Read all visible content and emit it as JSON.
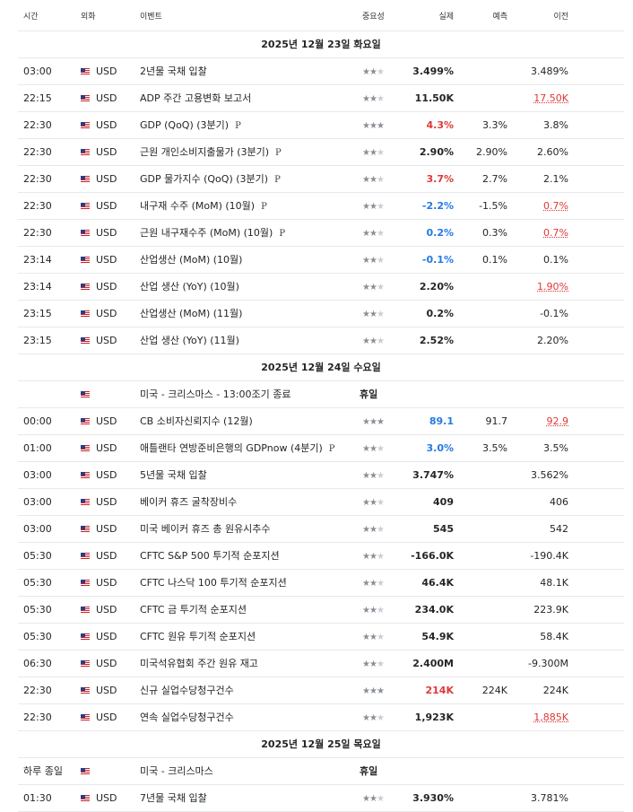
{
  "headers": {
    "time": "시간",
    "currency": "외화",
    "event": "이벤트",
    "importance": "중요성",
    "actual": "실제",
    "forecast": "예측",
    "previous": "이전"
  },
  "rows": [
    {
      "type": "day",
      "label": "2025년 12월 23일 화요일"
    },
    {
      "type": "event",
      "time": "03:00",
      "currency": "USD",
      "event": "2년물 국채 입찰",
      "prelim": "",
      "stars": 2,
      "actual": "3.499%",
      "actual_color": "",
      "forecast": "",
      "previous": "3.489%",
      "previous_revised": false
    },
    {
      "type": "event",
      "time": "22:15",
      "currency": "USD",
      "event": "ADP 주간 고용변화 보고서",
      "prelim": "",
      "stars": 2,
      "actual": "11.50K",
      "actual_color": "",
      "forecast": "",
      "previous": "17.50K",
      "previous_revised": true
    },
    {
      "type": "event",
      "time": "22:30",
      "currency": "USD",
      "event": "GDP (QoQ) (3분기)",
      "prelim": "P",
      "stars": 3,
      "actual": "4.3%",
      "actual_color": "red",
      "forecast": "3.3%",
      "previous": "3.8%",
      "previous_revised": false
    },
    {
      "type": "event",
      "time": "22:30",
      "currency": "USD",
      "event": "근원 개인소비지출물가  (3분기)",
      "prelim": "P",
      "stars": 2,
      "actual": "2.90%",
      "actual_color": "",
      "forecast": "2.90%",
      "previous": "2.60%",
      "previous_revised": false
    },
    {
      "type": "event",
      "time": "22:30",
      "currency": "USD",
      "event": "GDP 물가지수 (QoQ) (3분기)",
      "prelim": "P",
      "stars": 2,
      "actual": "3.7%",
      "actual_color": "red",
      "forecast": "2.7%",
      "previous": "2.1%",
      "previous_revised": false
    },
    {
      "type": "event",
      "time": "22:30",
      "currency": "USD",
      "event": "내구재 수주 (MoM) (10월)",
      "prelim": "P",
      "stars": 2,
      "actual": "-2.2%",
      "actual_color": "blue",
      "forecast": "-1.5%",
      "previous": "0.7%",
      "previous_revised": true
    },
    {
      "type": "event",
      "time": "22:30",
      "currency": "USD",
      "event": "근원 내구재수주 (MoM) (10월)",
      "prelim": "P",
      "stars": 2,
      "actual": "0.2%",
      "actual_color": "blue",
      "forecast": "0.3%",
      "previous": "0.7%",
      "previous_revised": true
    },
    {
      "type": "event",
      "time": "23:14",
      "currency": "USD",
      "event": "산업생산 (MoM) (10월)",
      "prelim": "",
      "stars": 2,
      "actual": "-0.1%",
      "actual_color": "blue",
      "forecast": "0.1%",
      "previous": "0.1%",
      "previous_revised": false
    },
    {
      "type": "event",
      "time": "23:14",
      "currency": "USD",
      "event": "산업 생산 (YoY) (10월)",
      "prelim": "",
      "stars": 2,
      "actual": "2.20%",
      "actual_color": "",
      "forecast": "",
      "previous": "1.90%",
      "previous_revised": true
    },
    {
      "type": "event",
      "time": "23:15",
      "currency": "USD",
      "event": "산업생산 (MoM) (11월)",
      "prelim": "",
      "stars": 2,
      "actual": "0.2%",
      "actual_color": "",
      "forecast": "",
      "previous": "-0.1%",
      "previous_revised": false
    },
    {
      "type": "event",
      "time": "23:15",
      "currency": "USD",
      "event": "산업 생산 (YoY) (11월)",
      "prelim": "",
      "stars": 2,
      "actual": "2.52%",
      "actual_color": "",
      "forecast": "",
      "previous": "2.20%",
      "previous_revised": false
    },
    {
      "type": "day",
      "label": "2025년 12월 24일 수요일"
    },
    {
      "type": "holiday",
      "time": "",
      "currency": "",
      "event": "미국 - 크리스마스  - 13:00조기 종료",
      "label": "휴일"
    },
    {
      "type": "event",
      "time": "00:00",
      "currency": "USD",
      "event": "CB 소비자신뢰지수  (12월)",
      "prelim": "",
      "stars": 3,
      "actual": "89.1",
      "actual_color": "blue",
      "forecast": "91.7",
      "previous": "92.9",
      "previous_revised": true
    },
    {
      "type": "event",
      "time": "01:00",
      "currency": "USD",
      "event": "애틀랜타 연방준비은행의 GDPnow  (4분기)",
      "prelim": "P",
      "stars": 2,
      "actual": "3.0%",
      "actual_color": "blue",
      "forecast": "3.5%",
      "previous": "3.5%",
      "previous_revised": false
    },
    {
      "type": "event",
      "time": "03:00",
      "currency": "USD",
      "event": "5년물 국채 입찰",
      "prelim": "",
      "stars": 2,
      "actual": "3.747%",
      "actual_color": "",
      "forecast": "",
      "previous": "3.562%",
      "previous_revised": false
    },
    {
      "type": "event",
      "time": "03:00",
      "currency": "USD",
      "event": "베이커 휴즈 굴착장비수",
      "prelim": "",
      "stars": 2,
      "actual": "409",
      "actual_color": "",
      "forecast": "",
      "previous": "406",
      "previous_revised": false
    },
    {
      "type": "event",
      "time": "03:00",
      "currency": "USD",
      "event": "미국 베이커 휴즈 총 원유시추수",
      "prelim": "",
      "stars": 2,
      "actual": "545",
      "actual_color": "",
      "forecast": "",
      "previous": "542",
      "previous_revised": false
    },
    {
      "type": "event",
      "time": "05:30",
      "currency": "USD",
      "event": "CFTC S&P 500 투기적 순포지션",
      "prelim": "",
      "stars": 2,
      "actual": "-166.0K",
      "actual_color": "",
      "forecast": "",
      "previous": "-190.4K",
      "previous_revised": false
    },
    {
      "type": "event",
      "time": "05:30",
      "currency": "USD",
      "event": "CFTC 나스닥 100 투기적 순포지션",
      "prelim": "",
      "stars": 2,
      "actual": "46.4K",
      "actual_color": "",
      "forecast": "",
      "previous": "48.1K",
      "previous_revised": false
    },
    {
      "type": "event",
      "time": "05:30",
      "currency": "USD",
      "event": "CFTC 금 투기적 순포지션",
      "prelim": "",
      "stars": 2,
      "actual": "234.0K",
      "actual_color": "",
      "forecast": "",
      "previous": "223.9K",
      "previous_revised": false
    },
    {
      "type": "event",
      "time": "05:30",
      "currency": "USD",
      "event": "CFTC 원유 투기적 순포지션",
      "prelim": "",
      "stars": 2,
      "actual": "54.9K",
      "actual_color": "",
      "forecast": "",
      "previous": "58.4K",
      "previous_revised": false
    },
    {
      "type": "event",
      "time": "06:30",
      "currency": "USD",
      "event": "미국석유협회 주간 원유 재고",
      "prelim": "",
      "stars": 2,
      "actual": "2.400M",
      "actual_color": "",
      "forecast": "",
      "previous": "-9.300M",
      "previous_revised": false
    },
    {
      "type": "event",
      "time": "22:30",
      "currency": "USD",
      "event": "신규 실업수당청구건수",
      "prelim": "",
      "stars": 3,
      "actual": "214K",
      "actual_color": "red",
      "forecast": "224K",
      "previous": "224K",
      "previous_revised": false
    },
    {
      "type": "event",
      "time": "22:30",
      "currency": "USD",
      "event": "연속 실업수당청구건수",
      "prelim": "",
      "stars": 2,
      "actual": "1,923K",
      "actual_color": "",
      "forecast": "",
      "previous": "1,885K",
      "previous_revised": true
    },
    {
      "type": "day",
      "label": "2025년 12월 25일 목요일"
    },
    {
      "type": "holiday",
      "time": "하루 종일",
      "currency": "",
      "event": "미국 - 크리스마스",
      "label": "휴일"
    },
    {
      "type": "event",
      "time": "01:30",
      "currency": "USD",
      "event": "7년물 국채 입찰",
      "prelim": "",
      "stars": 2,
      "actual": "3.930%",
      "actual_color": "",
      "forecast": "",
      "previous": "3.781%",
      "previous_revised": false
    }
  ]
}
